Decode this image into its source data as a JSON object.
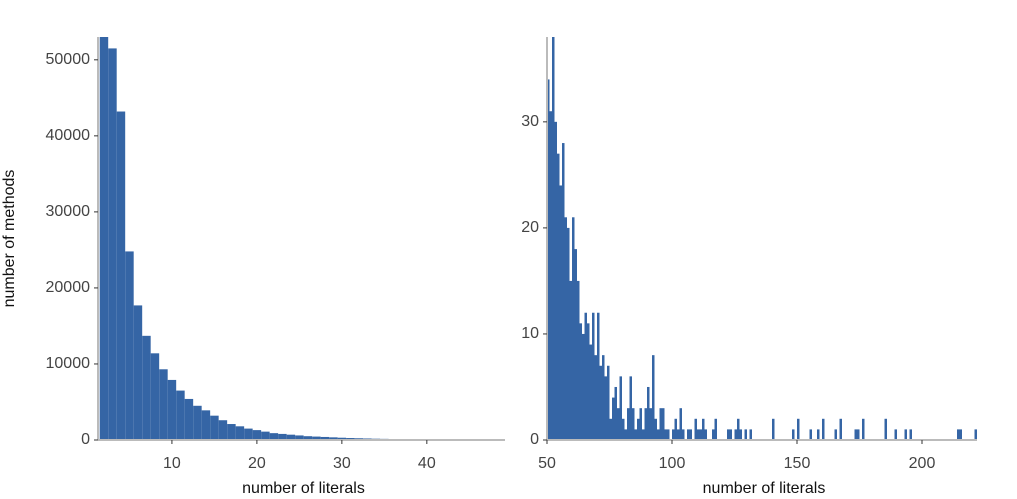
{
  "chart_data": [
    {
      "type": "histogram",
      "xlabel": "number of literals",
      "ylabel": "number of methods",
      "color": "#3565a5",
      "xlim": [
        1.3,
        49.2
      ],
      "ylim": [
        0,
        53000
      ],
      "xticks": [
        10,
        20,
        30,
        40
      ],
      "yticks": [
        0,
        10000,
        20000,
        30000,
        40000,
        50000
      ],
      "bins": [
        1.5,
        2.5,
        3.5,
        4.5,
        5.5,
        6.5,
        7.5,
        8.5,
        9.5,
        10.5,
        11.5,
        12.5,
        13.5,
        14.5,
        15.5,
        16.5,
        17.5,
        18.5,
        19.5,
        20.5,
        21.5,
        22.5,
        23.5,
        24.5,
        25.5,
        26.5,
        27.5,
        28.5,
        29.5,
        30.5,
        31.5,
        32.5,
        33.5,
        34.5,
        35.5,
        36.5,
        37.5,
        38.5,
        39.5,
        40.5,
        41.5,
        42.5,
        43.5,
        44.5,
        45.5,
        46.5,
        47.5,
        48.5
      ],
      "values": [
        53000,
        51500,
        43200,
        24800,
        17700,
        13700,
        11400,
        9300,
        7900,
        6500,
        5400,
        4500,
        3900,
        3200,
        2600,
        2100,
        1800,
        1500,
        1300,
        1100,
        900,
        800,
        700,
        600,
        500,
        450,
        400,
        350,
        300,
        260,
        230,
        200,
        170,
        150,
        130,
        110,
        100,
        90,
        80,
        70,
        60,
        50,
        45,
        40,
        35,
        30,
        25
      ]
    },
    {
      "type": "histogram",
      "xlabel": "number of literals",
      "color": "#3565a5",
      "xlim": [
        50,
        222
      ],
      "ylim": [
        0,
        38
      ],
      "xticks": [
        50,
        100,
        150,
        200
      ],
      "yticks": [
        0,
        10,
        20,
        30
      ],
      "bins": [
        50,
        51,
        52,
        53,
        54,
        55,
        56,
        57,
        58,
        59,
        60,
        61,
        62,
        63,
        64,
        65,
        66,
        67,
        68,
        69,
        70,
        71,
        72,
        73,
        74,
        75,
        76,
        77,
        78,
        79,
        80,
        81,
        82,
        83,
        84,
        85,
        86,
        87,
        88,
        89,
        90,
        91,
        92,
        93,
        94,
        95,
        96,
        97,
        98,
        99,
        100,
        101,
        102,
        103,
        104,
        105,
        106,
        107,
        108,
        109,
        110,
        111,
        112,
        113,
        114,
        115,
        116,
        117,
        118,
        119,
        120,
        121,
        122,
        123,
        124,
        125,
        126,
        127,
        128,
        129,
        130,
        131,
        132,
        133,
        134,
        135,
        136,
        137,
        138,
        139,
        140,
        141,
        142,
        143,
        144,
        145,
        146,
        147,
        148,
        149,
        150,
        151,
        152,
        153,
        154,
        155,
        156,
        157,
        158,
        159,
        160,
        161,
        162,
        163,
        164,
        165,
        166,
        167,
        168,
        169,
        170,
        171,
        172,
        173,
        174,
        175,
        176,
        177,
        178,
        179,
        180,
        181,
        182,
        183,
        184,
        185,
        186,
        187,
        188,
        189,
        190,
        191,
        192,
        193,
        194,
        195,
        196,
        197,
        198,
        199,
        200,
        201,
        202,
        203,
        204,
        205,
        206,
        207,
        208,
        209,
        210,
        211,
        212,
        213,
        214,
        215,
        216,
        217,
        218,
        219,
        220,
        221,
        222
      ],
      "values": [
        34,
        31,
        38,
        30,
        27,
        24,
        28,
        21,
        20,
        15,
        21,
        18,
        15,
        11,
        10,
        12,
        11,
        9,
        12,
        8,
        12,
        7,
        8,
        6,
        7,
        2,
        4,
        5,
        3,
        6,
        2,
        1,
        3,
        6,
        3,
        1,
        2,
        3,
        1,
        3,
        5,
        3,
        8,
        2,
        1,
        3,
        3,
        1,
        1,
        0,
        1,
        2,
        1,
        3,
        1,
        0,
        1,
        1,
        0,
        2,
        1,
        1,
        2,
        1,
        0,
        0,
        1,
        2,
        0,
        0,
        0,
        0,
        1,
        1,
        0,
        1,
        2,
        1,
        0,
        1,
        0,
        1,
        0,
        0,
        0,
        0,
        0,
        0,
        0,
        0,
        2,
        0,
        0,
        0,
        0,
        0,
        0,
        0,
        1,
        0,
        2,
        0,
        0,
        0,
        0,
        1,
        0,
        0,
        1,
        0,
        2,
        0,
        0,
        0,
        0,
        1,
        0,
        2,
        0,
        0,
        0,
        0,
        0,
        1,
        1,
        0,
        2,
        0,
        0,
        0,
        0,
        0,
        0,
        0,
        0,
        2,
        0,
        0,
        0,
        1,
        0,
        0,
        0,
        1,
        0,
        1,
        0,
        0,
        0,
        0,
        0,
        0,
        0,
        0,
        0,
        0,
        0,
        0,
        0,
        0,
        0,
        0,
        0,
        0,
        1,
        1,
        0,
        0,
        0,
        0,
        0,
        1
      ]
    }
  ]
}
